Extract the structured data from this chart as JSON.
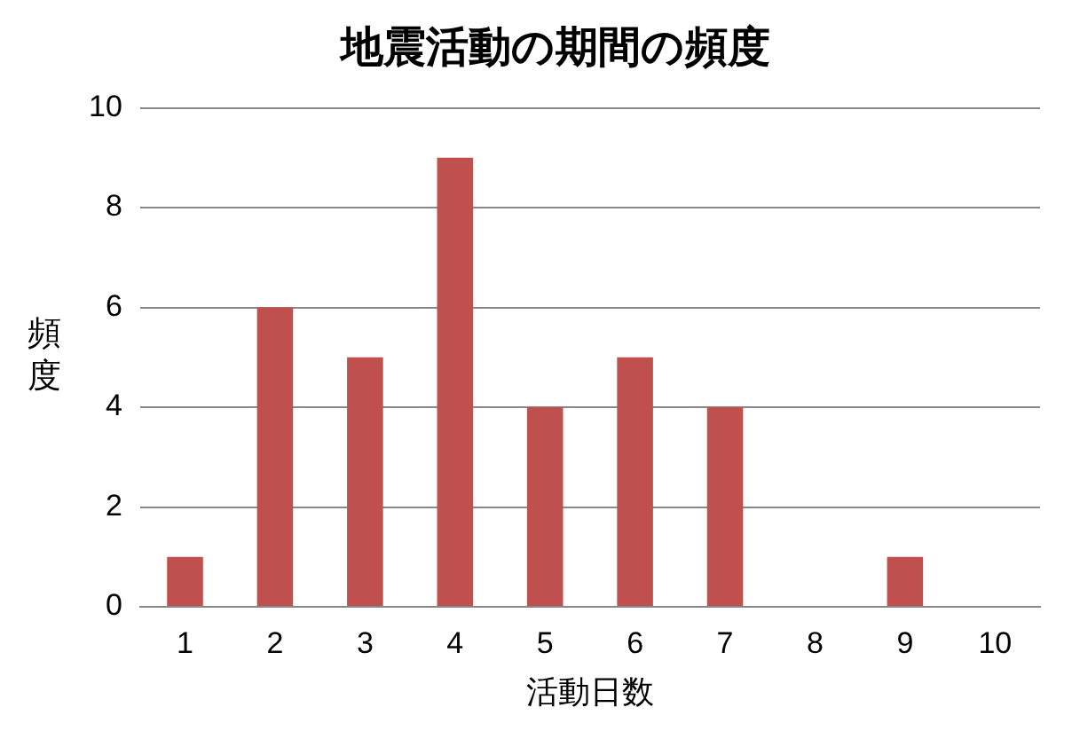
{
  "chart_data": {
    "type": "bar",
    "title": "地震活動の期間の頻度",
    "xlabel": "活動日数",
    "ylabel": "頻度",
    "categories": [
      "1",
      "2",
      "3",
      "4",
      "5",
      "6",
      "7",
      "8",
      "9",
      "10"
    ],
    "values": [
      1,
      6,
      5,
      9,
      4,
      5,
      4,
      0,
      1,
      0
    ],
    "color": "#c0504d",
    "ylim": [
      0,
      10
    ],
    "yticks": [
      0,
      2,
      4,
      6,
      8,
      10
    ],
    "grid": "y"
  }
}
